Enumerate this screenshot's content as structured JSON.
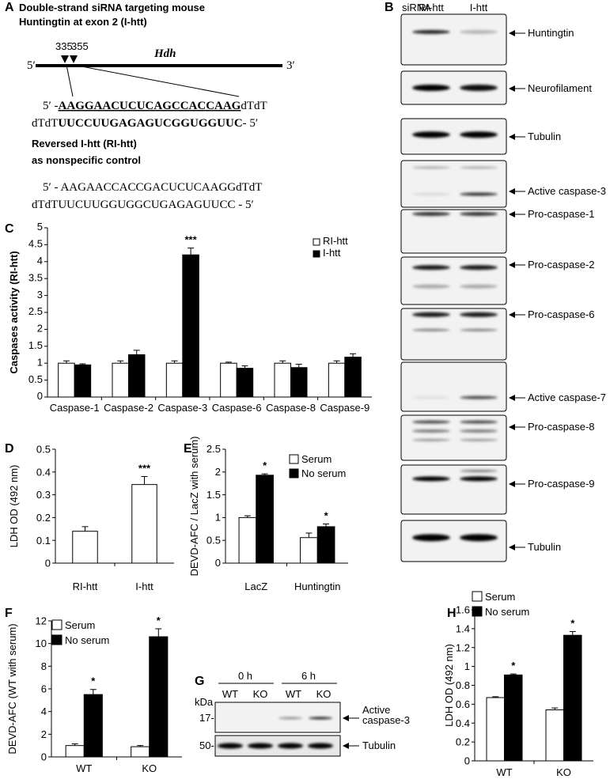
{
  "panel_a": {
    "label": "A",
    "title": [
      "Double-strand siRNA targeting mouse",
      "Huntingtin at exon 2 (I-htt)"
    ],
    "positions": [
      "335",
      "355"
    ],
    "gene": "Hdh",
    "end5": "5′",
    "end3": "3′",
    "sense": {
      "prefix": "5′ -",
      "sequence": "AAGGAACUCUCAGCCACCAAG",
      "suffix": "dTdT"
    },
    "antisense": {
      "prefix": "dTdT",
      "sequence": "UUCCUUGAGAGUCGGUGGUUC",
      "suffix": "- 5′"
    },
    "control_title": [
      "Reversed I-htt (RI-htt)",
      "as nonspecific control"
    ],
    "control": [
      "5′ - AAGAACCACCGACUCUCAAGGdTdT",
      "dTdTUUCUUGGUGGCUGAGAGUUCC - 5′"
    ]
  },
  "panel_b": {
    "label": "B",
    "header": "siRNA",
    "lanes": [
      "RI-htt",
      "I-htt"
    ],
    "blots": [
      "Huntingtin",
      "Neurofilament",
      "Tubulin",
      "Active caspase-3",
      "Pro-caspase-1",
      "Pro-caspase-2",
      "Pro-caspase-6",
      "Active caspase-7",
      "Pro-caspase-8",
      "Pro-caspase-9",
      "Tubulin"
    ]
  },
  "panel_g": {
    "label": "G",
    "times": [
      "0 h",
      "6 h"
    ],
    "lanes": [
      "WT",
      "KO",
      "WT",
      "KO"
    ],
    "unit": "kDa",
    "markers": [
      "17-",
      "50-"
    ],
    "blots": [
      [
        "Active",
        "caspase-3"
      ],
      [
        "Tubulin"
      ]
    ]
  },
  "chart_data": [
    {
      "type": "bar",
      "panel_label": "C",
      "ylabel": "Caspases activity (RI-htt)",
      "categories": [
        "Caspase-1",
        "Caspase-2",
        "Caspase-3",
        "Caspase-6",
        "Caspase-8",
        "Caspase-9"
      ],
      "series": [
        {
          "name": "RI-htt",
          "color": "#ffffff",
          "values": [
            1,
            1,
            1,
            1,
            1,
            1
          ],
          "errors": [
            0.07,
            0.07,
            0.07,
            0.03,
            0.07,
            0.07
          ]
        },
        {
          "name": "I-htt",
          "color": "#000000",
          "values": [
            0.95,
            1.25,
            4.2,
            0.85,
            0.87,
            1.18
          ],
          "errors": [
            0.03,
            0.13,
            0.2,
            0.07,
            0.1,
            0.1
          ],
          "significance": [
            null,
            null,
            "***",
            null,
            null,
            null
          ]
        }
      ],
      "ylim": [
        0,
        5
      ],
      "yticks": [
        0,
        0.5,
        1,
        1.5,
        2,
        2.5,
        3,
        3.5,
        4,
        4.5,
        5
      ]
    },
    {
      "type": "bar",
      "panel_label": "D",
      "ylabel": "LDH OD (492 nm)",
      "categories": [
        "RI-htt",
        "I-htt"
      ],
      "series": [
        {
          "color": "#ffffff",
          "values": [
            0.14,
            0.345
          ],
          "errors": [
            0.02,
            0.035
          ],
          "significance": [
            null,
            "***"
          ]
        }
      ],
      "ylim": [
        0,
        0.5
      ],
      "yticks": [
        0,
        0.1,
        0.2,
        0.3,
        0.4,
        0.5
      ]
    },
    {
      "type": "bar",
      "panel_label": "E",
      "ylabel": "DEVD-AFC / LacZ with serum)",
      "categories": [
        "LacZ",
        "Huntingtin"
      ],
      "series": [
        {
          "name": "Serum",
          "color": "#ffffff",
          "values": [
            1,
            0.56
          ],
          "errors": [
            0.04,
            0.1
          ]
        },
        {
          "name": "No serum",
          "color": "#000000",
          "values": [
            1.93,
            0.8
          ],
          "errors": [
            0.03,
            0.06
          ],
          "significance": [
            "*",
            "*"
          ]
        }
      ],
      "ylim": [
        0,
        2.5
      ],
      "yticks": [
        0,
        0.5,
        1,
        1.5,
        2,
        2.5
      ]
    },
    {
      "type": "bar",
      "panel_label": "F",
      "ylabel": "DEVD-AFC (WT with serum)",
      "categories": [
        "WT",
        "KO"
      ],
      "series": [
        {
          "name": "Serum",
          "color": "#ffffff",
          "values": [
            1,
            0.9
          ],
          "errors": [
            0.15,
            0.1
          ]
        },
        {
          "name": "No serum",
          "color": "#000000",
          "values": [
            5.5,
            10.6
          ],
          "errors": [
            0.45,
            0.7
          ],
          "significance": [
            "*",
            "*"
          ]
        }
      ],
      "ylim": [
        0,
        12
      ],
      "yticks": [
        0,
        2,
        4,
        6,
        8,
        10,
        12
      ]
    },
    {
      "type": "bar",
      "panel_label": "H",
      "ylabel": "LDH OD (492 nm)",
      "categories": [
        "WT",
        "KO"
      ],
      "series": [
        {
          "name": "Serum",
          "color": "#ffffff",
          "values": [
            0.67,
            0.54
          ],
          "errors": [
            0.01,
            0.02
          ]
        },
        {
          "name": "No serum",
          "color": "#000000",
          "values": [
            0.91,
            1.33
          ],
          "errors": [
            0.01,
            0.04
          ],
          "significance": [
            "*",
            "*"
          ]
        }
      ],
      "ylim": [
        0,
        1.6
      ],
      "yticks": [
        0,
        0.2,
        0.4,
        0.6,
        0.8,
        1,
        1.2,
        1.4,
        1.6
      ]
    }
  ]
}
